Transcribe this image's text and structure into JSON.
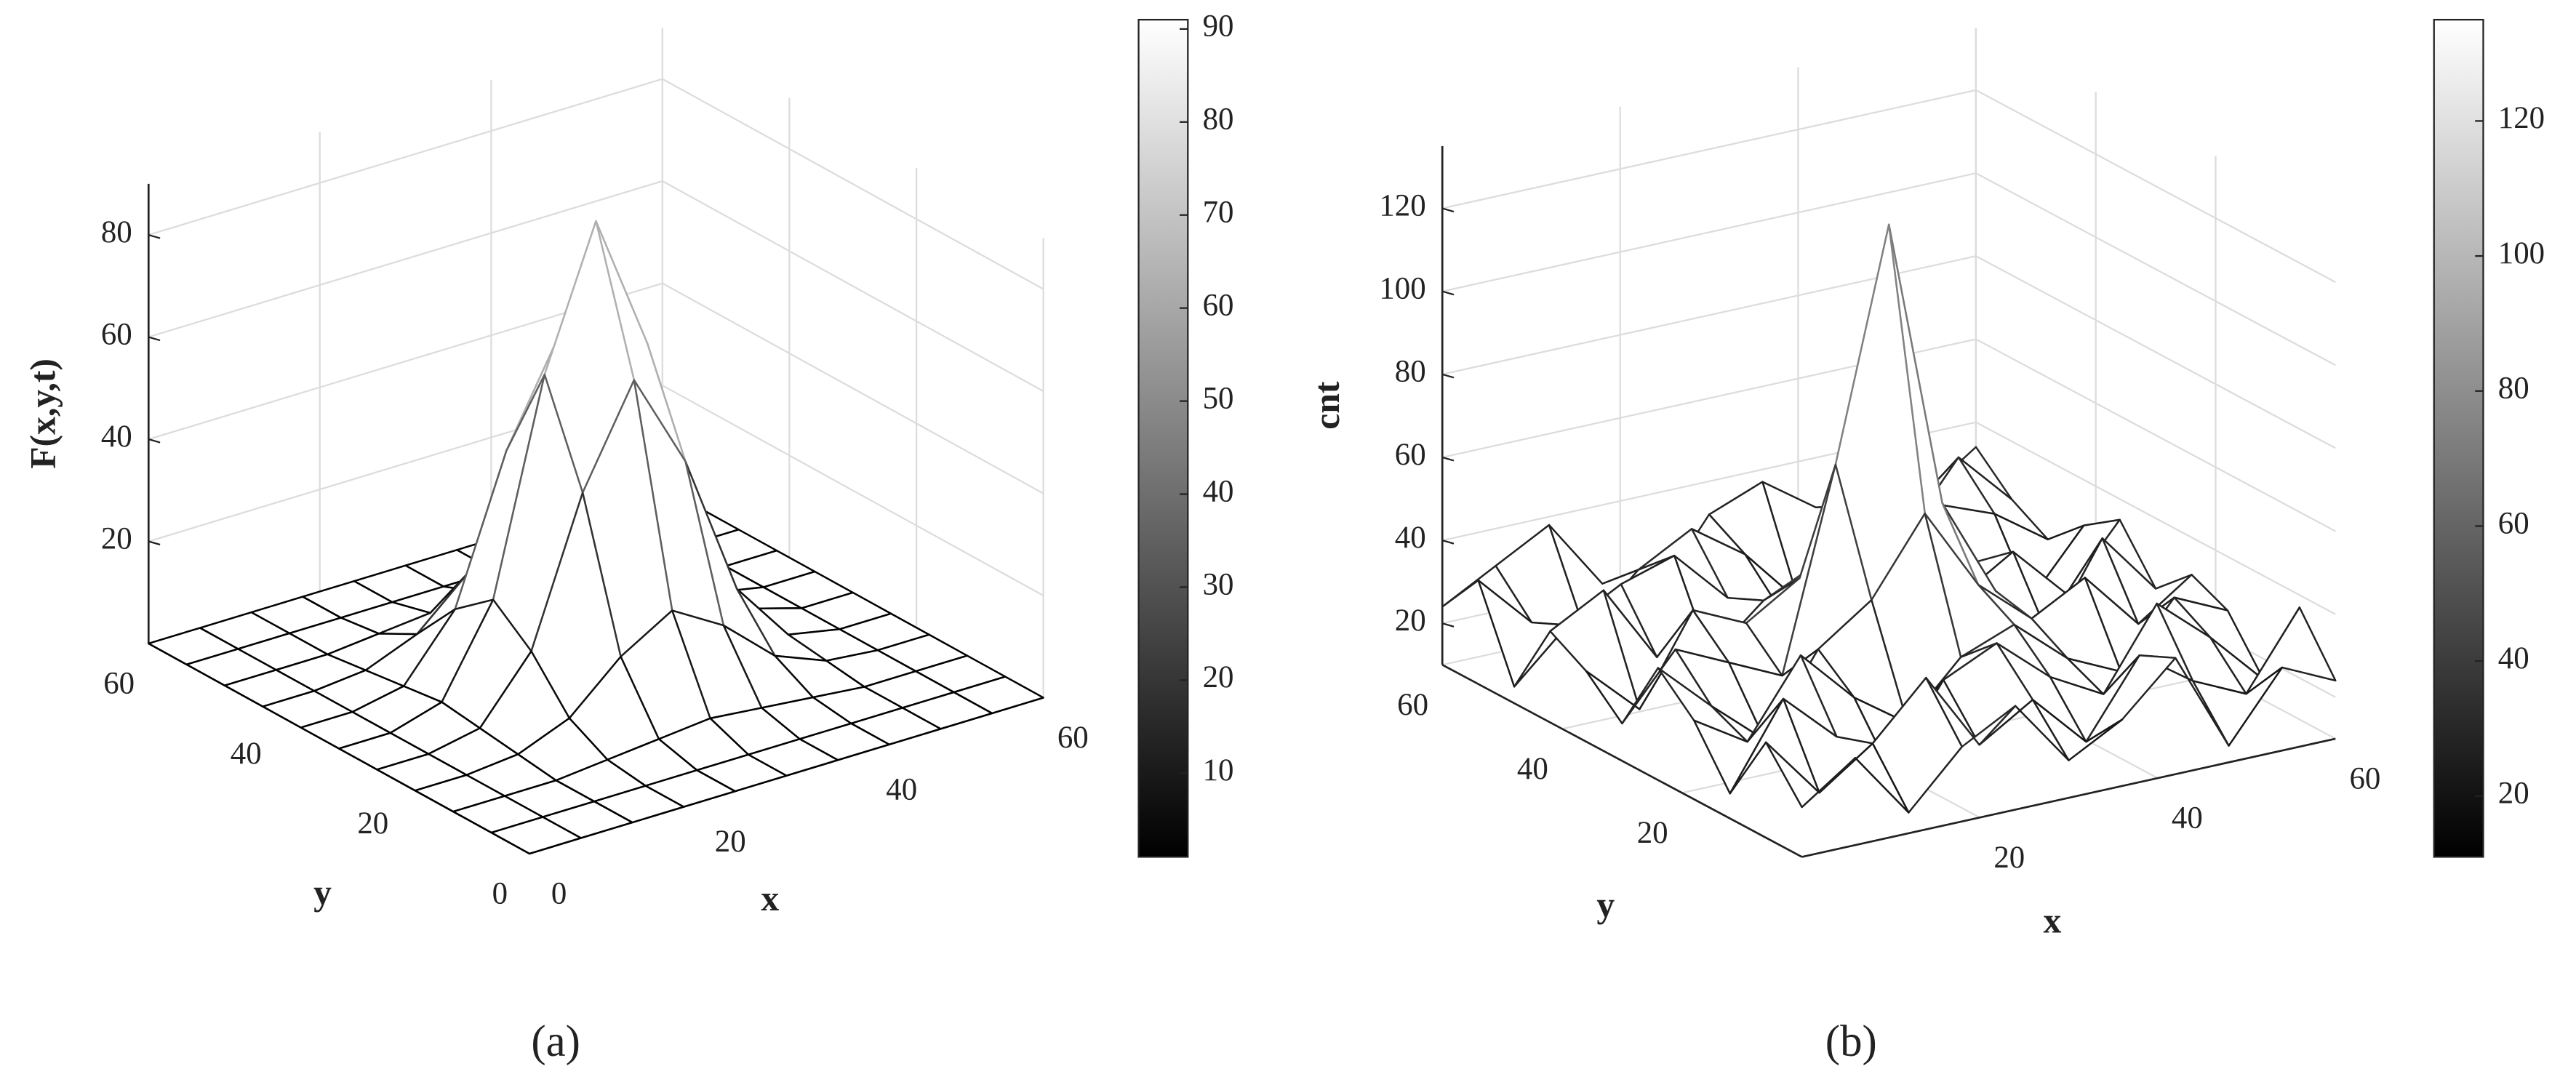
{
  "chart_data": [
    {
      "type": "surface",
      "caption": "(a)",
      "zlabel": "F(x,y,t)",
      "xlabel": "x",
      "ylabel": "y",
      "xlim": [
        0,
        60
      ],
      "ylim": [
        0,
        60
      ],
      "zlim": [
        0,
        90
      ],
      "xticks": [
        0,
        20,
        40,
        60
      ],
      "yticks": [
        0,
        20,
        40,
        60
      ],
      "zticks": [
        20,
        40,
        60,
        80
      ],
      "grid": true,
      "colormap": "gray",
      "colorbar": {
        "lim": [
          1,
          91
        ],
        "ticks": [
          10,
          20,
          30,
          40,
          50,
          60,
          70,
          80,
          90
        ]
      },
      "x": [
        0,
        6,
        12,
        18,
        24,
        30,
        36,
        42,
        48,
        54,
        60
      ],
      "y": [
        0,
        6,
        12,
        18,
        24,
        30,
        36,
        42,
        48,
        54,
        60
      ],
      "z": [
        [
          0,
          0,
          0,
          0,
          0,
          0,
          0,
          0,
          0,
          0,
          0
        ],
        [
          0,
          0,
          0,
          0,
          0,
          0,
          0,
          0,
          0,
          0,
          0
        ],
        [
          0,
          0,
          0,
          1,
          2,
          3,
          2,
          1,
          0,
          0,
          0
        ],
        [
          0,
          0,
          1,
          5,
          14,
          20,
          14,
          5,
          1,
          0,
          0
        ],
        [
          0,
          0,
          2,
          14,
          42,
          61,
          42,
          14,
          2,
          0,
          0
        ],
        [
          0,
          0,
          3,
          20,
          61,
          88,
          61,
          20,
          3,
          0,
          0
        ],
        [
          0,
          0,
          2,
          14,
          42,
          61,
          42,
          14,
          2,
          0,
          0
        ],
        [
          0,
          0,
          1,
          5,
          14,
          20,
          14,
          5,
          1,
          0,
          0
        ],
        [
          0,
          0,
          0,
          1,
          2,
          3,
          2,
          1,
          0,
          0,
          0
        ],
        [
          0,
          0,
          0,
          0,
          0,
          0,
          0,
          0,
          0,
          0,
          0
        ],
        [
          0,
          0,
          0,
          0,
          0,
          0,
          0,
          0,
          0,
          0,
          0
        ]
      ]
    },
    {
      "type": "surface",
      "caption": "(b)",
      "zlabel": "cnt",
      "xlabel": "x",
      "ylabel": "y",
      "xlim": [
        0,
        60
      ],
      "ylim": [
        0,
        60
      ],
      "zlim": [
        10,
        135
      ],
      "xticks": [
        20,
        40,
        60
      ],
      "yticks": [
        20,
        40,
        60
      ],
      "zticks": [
        20,
        40,
        60,
        80,
        100,
        120
      ],
      "grid": true,
      "colormap": "gray",
      "colorbar": {
        "lim": [
          11,
          135
        ],
        "ticks": [
          20,
          40,
          60,
          80,
          100,
          120
        ]
      },
      "x": [
        0,
        6,
        12,
        18,
        24,
        30,
        36,
        42,
        48,
        54,
        60
      ],
      "y": [
        0,
        6,
        12,
        18,
        24,
        30,
        36,
        42,
        48,
        54,
        60
      ],
      "z": [
        [
          22,
          31,
          15,
          28,
          35,
          19,
          26,
          38,
          14,
          30,
          24
        ],
        [
          33,
          18,
          27,
          40,
          21,
          29,
          16,
          34,
          25,
          19,
          37
        ],
        [
          16,
          36,
          24,
          13,
          32,
          38,
          27,
          20,
          39,
          28,
          15
        ],
        [
          29,
          21,
          39,
          26,
          17,
          30,
          35,
          24,
          18,
          33,
          27
        ],
        [
          37,
          25,
          14,
          33,
          42,
          60,
          40,
          29,
          36,
          22,
          31
        ],
        [
          19,
          34,
          28,
          22,
          70,
          125,
          55,
          31,
          17,
          38,
          23
        ],
        [
          27,
          15,
          36,
          30,
          38,
          65,
          36,
          25,
          33,
          20,
          35
        ],
        [
          32,
          39,
          20,
          17,
          28,
          34,
          22,
          39,
          26,
          14,
          29
        ],
        [
          14,
          26,
          33,
          37,
          24,
          18,
          31,
          15,
          35,
          30,
          21
        ],
        [
          35,
          22,
          17,
          29,
          36,
          27,
          13,
          33,
          23,
          39,
          26
        ],
        [
          24,
          31,
          38,
          21,
          15,
          32,
          37,
          28,
          19,
          25,
          34
        ]
      ]
    }
  ]
}
